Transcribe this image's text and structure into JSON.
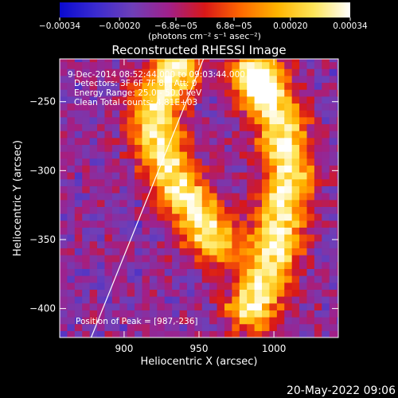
{
  "chart_data": {
    "type": "heatmap",
    "title": "Reconstructed RHESSI Image",
    "xlabel": "Heliocentric X (arcsec)",
    "ylabel": "Heliocentric Y (arcsec)",
    "xlim": [
      857,
      1043
    ],
    "ylim": [
      -421,
      -219
    ],
    "x_ticks": [
      900,
      950,
      1000
    ],
    "y_ticks": [
      -250,
      -300,
      -350,
      -400
    ],
    "x_tick_labels": [
      "900",
      "950",
      "1000"
    ],
    "y_tick_labels": [
      "−250",
      "−300",
      "−350",
      "−400"
    ],
    "colorbar": {
      "range": [
        -0.00034,
        0.00034
      ],
      "tick_values": [
        -0.00034,
        -0.0002,
        -6.8e-05,
        6.8e-05,
        0.0002,
        0.00034
      ],
      "tick_labels": [
        "−0.00034",
        "−0.00020",
        "−6.8e−05",
        "6.8e−05",
        "0.00020",
        "0.00034"
      ],
      "units_label": "(photons cm⁻² s⁻¹ asec⁻²)",
      "colors": [
        "#0a0ad0",
        "#3b2bd0",
        "#6e3fb8",
        "#a0208a",
        "#d81818",
        "#ff6a00",
        "#ffb400",
        "#ffe65a",
        "#ffffff"
      ]
    },
    "info_lines": [
      " 9-Dec-2014 08:52:44.000 to 09:03:44.000",
      "Detectors: 3F 6F 7F 8F, Att: 0",
      "Energy Range: 25.0 - 50.0 keV",
      "Clean     Total counts: 4.81E+03"
    ],
    "peak_text": "Position of Peak = [987,-236]",
    "peak": [
      987,
      -236
    ],
    "limb_line": [
      [
        878,
        -421
      ],
      [
        953,
        -219
      ]
    ],
    "emission_ridges": [
      {
        "x": [
          935,
          925,
          920,
          930,
          960
        ],
        "y": [
          -225,
          -245,
          -265,
          -300,
          -350
        ]
      },
      {
        "x": [
          990,
          1005,
          1010,
          1005,
          1000,
          985
        ],
        "y": [
          -230,
          -270,
          -300,
          -330,
          -360,
          -400
        ]
      }
    ]
  },
  "footer": {
    "timestamp": "20-May-2022 09:06"
  }
}
